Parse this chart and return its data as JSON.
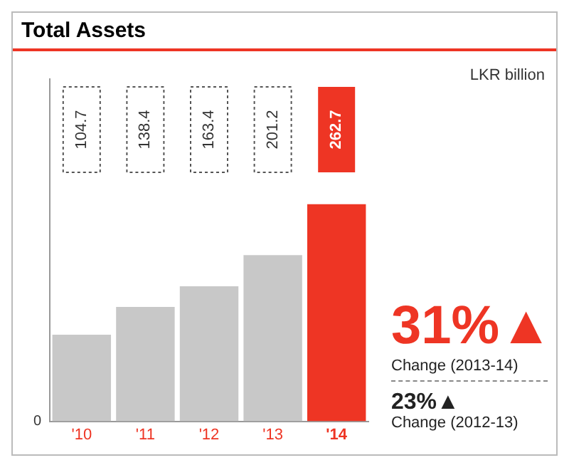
{
  "chart_data": {
    "type": "bar",
    "title": "Total Assets",
    "categories": [
      "'10",
      "'11",
      "'12",
      "'13",
      "'14"
    ],
    "values": [
      104.7,
      138.4,
      163.4,
      201.2,
      262.7
    ],
    "colors": [
      "#c8c8c8",
      "#c8c8c8",
      "#c8c8c8",
      "#c8c8c8",
      "#ee3524"
    ],
    "data_labels": true,
    "grid": false,
    "legend": false,
    "annotations": [
      "LKR billion",
      "0",
      "31%▲",
      "Change (2013-14)",
      "23%▲",
      "Change (2012-13)"
    ]
  }
}
